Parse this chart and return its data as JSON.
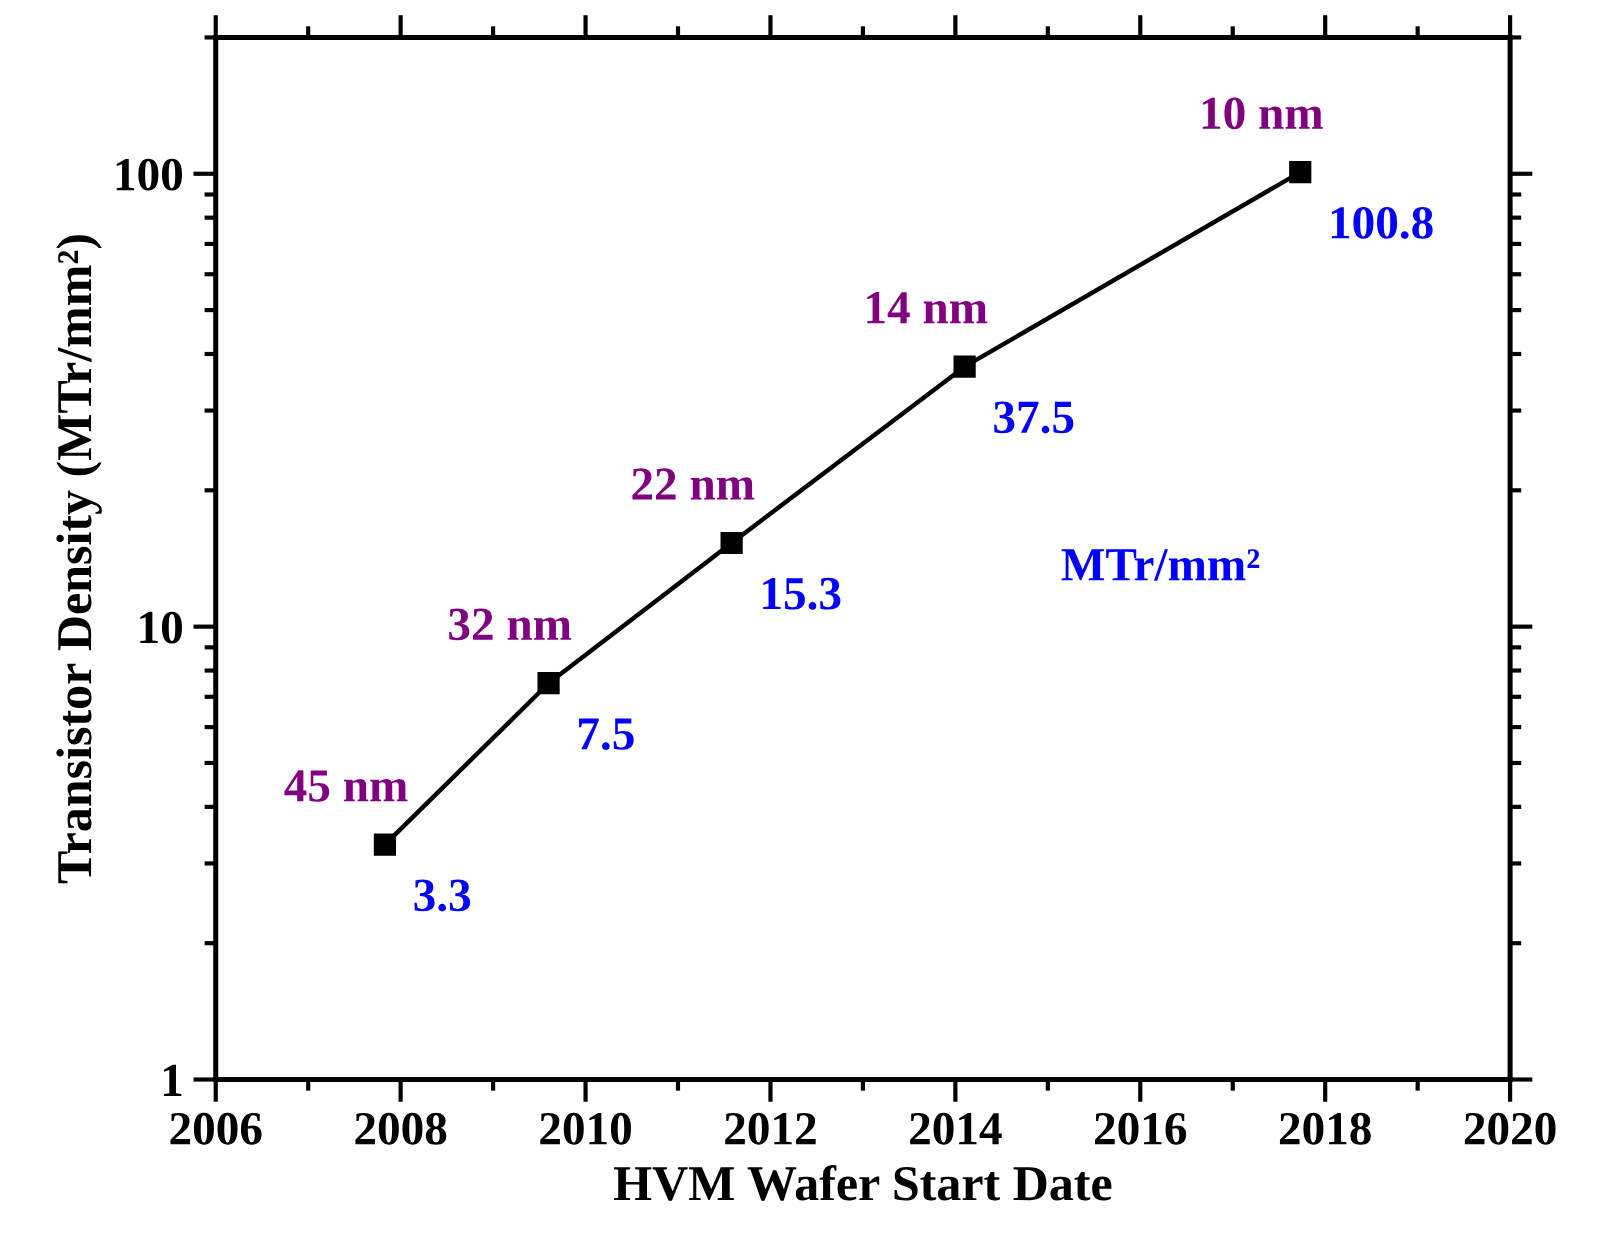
{
  "chart_data": {
    "type": "line",
    "xlabel": "HVM Wafer Start Date",
    "ylabel": "Transistor Density (MTr/mm²)",
    "x": [
      2007.83,
      2009.6,
      2011.58,
      2014.1,
      2017.73
    ],
    "series": [
      {
        "color": "#000000",
        "values": [
          3.3,
          7.5,
          15.3,
          37.5,
          100.8
        ]
      }
    ],
    "marker": "square",
    "line_style": "solid",
    "log": "y",
    "data_labels": true,
    "xlim": [
      2006,
      2020
    ],
    "xticks": [
      2006,
      2008,
      2010,
      2012,
      2014,
      2016,
      2018,
      2020
    ],
    "ylim": [
      1,
      200
    ],
    "yticks": [
      1,
      10,
      100
    ],
    "grid": false,
    "legend": false,
    "annotations": [
      {
        "text": "45 nm",
        "x": 2007.83,
        "y": 3.3
      },
      {
        "text": "32 nm",
        "x": 2009.6,
        "y": 7.5
      },
      {
        "text": "22 nm",
        "x": 2011.58,
        "y": 15.3
      },
      {
        "text": "14 nm",
        "x": 2014.1,
        "y": 37.5
      },
      {
        "text": "10 nm",
        "x": 2017.73,
        "y": 100.8
      },
      "MTr/mm²"
    ]
  }
}
